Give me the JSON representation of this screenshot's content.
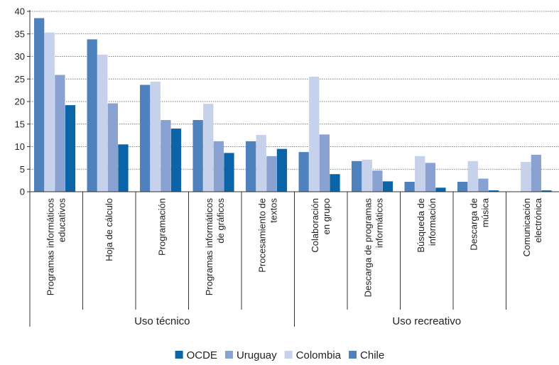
{
  "chart_data": {
    "type": "bar",
    "ylim": [
      0,
      40
    ],
    "yticks": [
      0,
      5,
      10,
      15,
      20,
      25,
      30,
      35,
      40
    ],
    "grid": true,
    "legend_position": "bottom",
    "categories": [
      [
        "Programas informáticos",
        "educativos"
      ],
      [
        "Hoja de cálculo"
      ],
      [
        "Programación"
      ],
      [
        "Programas informáticos",
        "de gráficos"
      ],
      [
        "Procesamiento de",
        "textos"
      ],
      [
        "Colaboración",
        "en grupo"
      ],
      [
        "Descarga de programas",
        "informáticos"
      ],
      [
        "Búsqueda de",
        "información"
      ],
      [
        "Descarga de",
        "música"
      ],
      [
        "Comunicación",
        "electrónica"
      ]
    ],
    "groups": [
      {
        "label": "Uso técnico",
        "start": 0,
        "end": 4
      },
      {
        "label": "Uso recreativo",
        "start": 5,
        "end": 9
      }
    ],
    "series": [
      {
        "name": "Chile",
        "color": "#4f81bd",
        "values": [
          38.5,
          33.8,
          23.7,
          15.9,
          11.2,
          8.8,
          6.8,
          2.2,
          2.2,
          0
        ]
      },
      {
        "name": "Colombia",
        "color": "#c6d1eb",
        "values": [
          35.3,
          30.4,
          24.4,
          19.5,
          12.6,
          25.5,
          7.1,
          7.9,
          6.8,
          6.6
        ]
      },
      {
        "name": "Uruguay",
        "color": "#8aa2d1",
        "values": [
          25.9,
          19.6,
          15.9,
          11.2,
          7.9,
          12.7,
          4.7,
          6.4,
          2.9,
          8.2
        ]
      },
      {
        "name": "OCDE",
        "color": "#0b63a8",
        "values": [
          19.2,
          10.5,
          14.0,
          8.6,
          9.5,
          3.9,
          2.3,
          0.9,
          0.3,
          0.3
        ]
      }
    ],
    "legend_order": [
      "OCDE",
      "Uruguay",
      "Colombia",
      "Chile"
    ]
  }
}
